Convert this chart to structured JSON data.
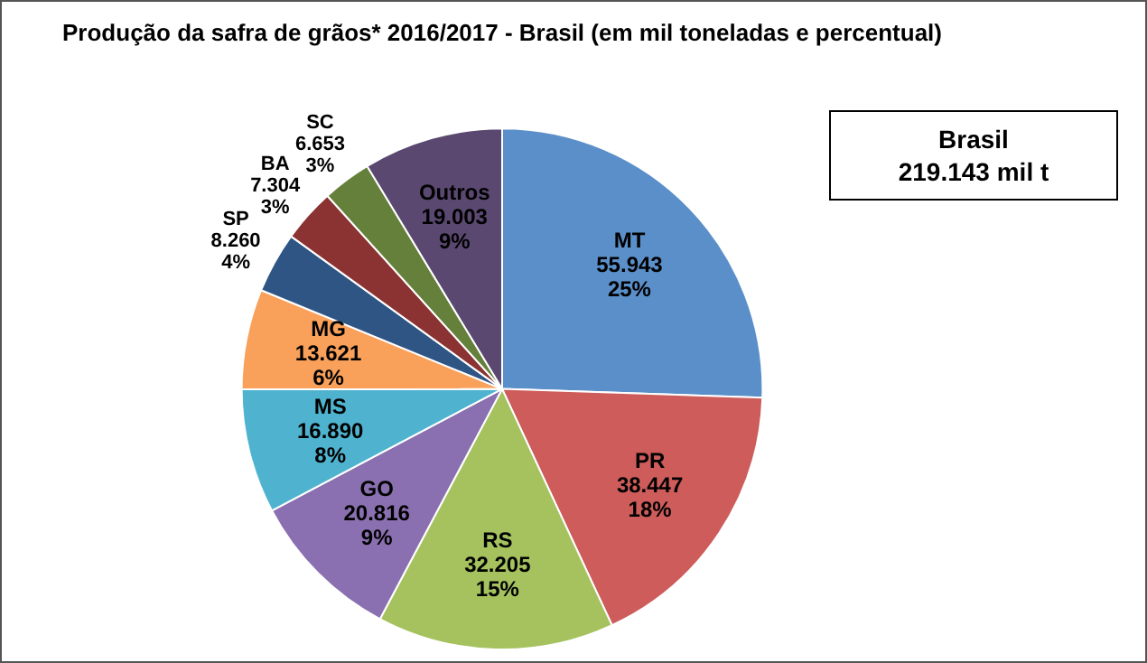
{
  "chart_data": {
    "type": "pie",
    "title": "Produção da safra de grãos* 2016/2017 - Brasil (em mil toneladas e percentual)",
    "categories": [
      "MT",
      "PR",
      "RS",
      "GO",
      "MS",
      "MG",
      "SP",
      "BA",
      "SC",
      "Outros"
    ],
    "values": [
      55943,
      38447,
      32205,
      20816,
      16890,
      13621,
      8260,
      7304,
      6653,
      19003
    ],
    "colors": [
      "#5b8fc9",
      "#cd5c5a",
      "#a5c25f",
      "#8a70b0",
      "#4fb3cf",
      "#f9a05a",
      "#2f5585",
      "#8a3332",
      "#64803a",
      "#5a4870"
    ],
    "value_labels": [
      "55.943\n25%",
      "38.447\n18%",
      "32.205\n15%",
      "20.816\n9%",
      "16.890\n8%",
      "13.621\n6%",
      "8.260\n4%",
      "7.304\n3%",
      "6.653\n3%",
      "19.003\n9%"
    ],
    "annotations": [
      "Brasil\n219.143 mil t"
    ],
    "legend": false
  }
}
